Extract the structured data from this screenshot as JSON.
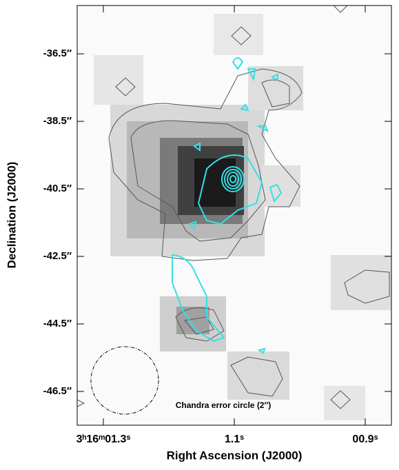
{
  "chart_data": {
    "type": "image",
    "x_label": "Right Ascension (J2000)",
    "y_label": "Declination (J2000)",
    "annotation": "Chandra error circle (2″)",
    "xlim": [
      1.34,
      0.86
    ],
    "ylim": [
      -47.5,
      -35.07
    ],
    "xticks": [
      {
        "value": 1.3,
        "label": "3ʰ16ᵐ01.3ˢ"
      },
      {
        "value": 1.1,
        "label": "1.1ˢ"
      },
      {
        "value": 0.9,
        "label": "00.9ˢ"
      }
    ],
    "yticks": [
      {
        "value": -36.5,
        "label": "-36.5″"
      },
      {
        "value": -38.5,
        "label": "-38.5″"
      },
      {
        "value": -40.5,
        "label": "-40.5″"
      },
      {
        "value": -42.5,
        "label": "-42.5″"
      },
      {
        "value": -44.5,
        "label": "-44.5″"
      },
      {
        "value": -46.5,
        "label": "-46.5″"
      }
    ]
  }
}
